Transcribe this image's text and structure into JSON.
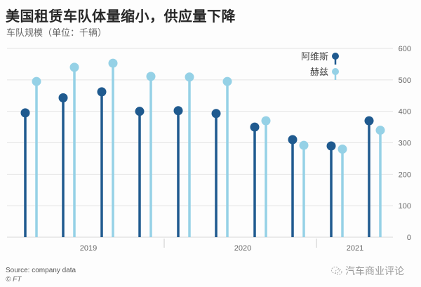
{
  "header": {
    "title": "美国租赁车队体量缩小，供应量下降",
    "subtitle": "车队规模（单位：千辆）"
  },
  "footer": {
    "source": "Source: company data",
    "copyright": "© FT",
    "watermark": "汽车商业评论"
  },
  "colors": {
    "avis": "#1f5a8f",
    "hertz": "#95d1e6",
    "grid": "#e4e4e4",
    "axis_text": "#666666"
  },
  "chart_data": {
    "type": "lollipop",
    "title": "美国租赁车队体量缩小，供应量下降",
    "subtitle": "车队规模（单位：千辆）",
    "xlabel": "",
    "ylabel": "车队规模（千辆）",
    "ylim": [
      0,
      600
    ],
    "yticks": [
      0,
      100,
      200,
      300,
      400,
      500,
      600
    ],
    "grid": true,
    "legend_position": "top-right",
    "x_groups": [
      {
        "label": "2019",
        "quarters": 5
      },
      {
        "label": "2020",
        "quarters": 4
      },
      {
        "label": "2021",
        "quarters": 1
      }
    ],
    "categories": [
      "2019-1",
      "2019-2",
      "2019-3",
      "2019-4",
      "2019-5",
      "2020-1",
      "2020-2",
      "2020-3",
      "2020-4",
      "2021-1"
    ],
    "series": [
      {
        "name": "阿维斯",
        "color": "#1f5a8f",
        "values": [
          395,
          443,
          462,
          400,
          402,
          393,
          350,
          310,
          290,
          370
        ]
      },
      {
        "name": "赫兹",
        "color": "#95d1e6",
        "values": [
          495,
          540,
          553,
          511,
          509,
          495,
          370,
          292,
          280,
          340
        ]
      }
    ]
  }
}
